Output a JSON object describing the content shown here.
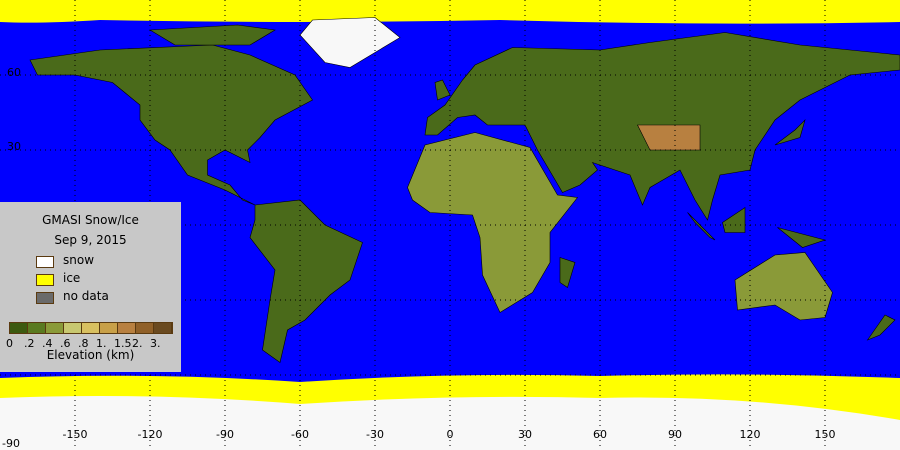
{
  "legend": {
    "title": "GMASI Snow/Ice",
    "date": "Sep  9, 2015",
    "items": [
      {
        "label": "snow",
        "color": "#ffffff"
      },
      {
        "label": "ice",
        "color": "#ffff00"
      },
      {
        "label": "no data",
        "color": "#6a6a6a"
      }
    ],
    "colorbar": {
      "colors": [
        "#3c5a10",
        "#5a7a20",
        "#8a9a38",
        "#c8c870",
        "#d8c060",
        "#c8a048",
        "#b88040",
        "#906028",
        "#6a4a20"
      ],
      "tick_labels": [
        "0",
        ".2",
        ".4",
        ".6",
        ".8",
        "1.",
        "1.5",
        "2.",
        "3."
      ],
      "label": "Elevation (km)"
    }
  },
  "axes": {
    "longitude_labels": [
      "-150",
      "-120",
      "-90",
      "-60",
      "-30",
      "0",
      "30",
      "60",
      "90",
      "120",
      "150"
    ],
    "latitude_labels": [
      "60",
      "30",
      "-90"
    ]
  },
  "colors": {
    "ocean": "#0000ff",
    "ice": "#ffff00",
    "snow": "#f8f8f8",
    "land": "#4a6a1a"
  }
}
